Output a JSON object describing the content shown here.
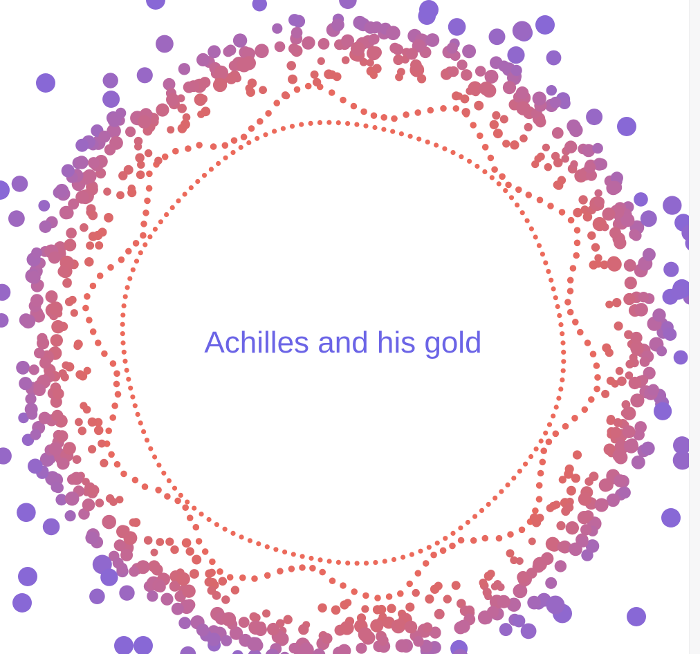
{
  "title": "Achilles and his gold",
  "colors": {
    "background": "#ffffff",
    "title_text": "#6b64e6",
    "inner_dot": "#ec6a5b",
    "mid_dot": "#d9686c",
    "outer_dot": "#bf689c",
    "far_dot": "#8868d6"
  },
  "visual": {
    "description_type": "particle-ring",
    "ring_count": 5
  }
}
